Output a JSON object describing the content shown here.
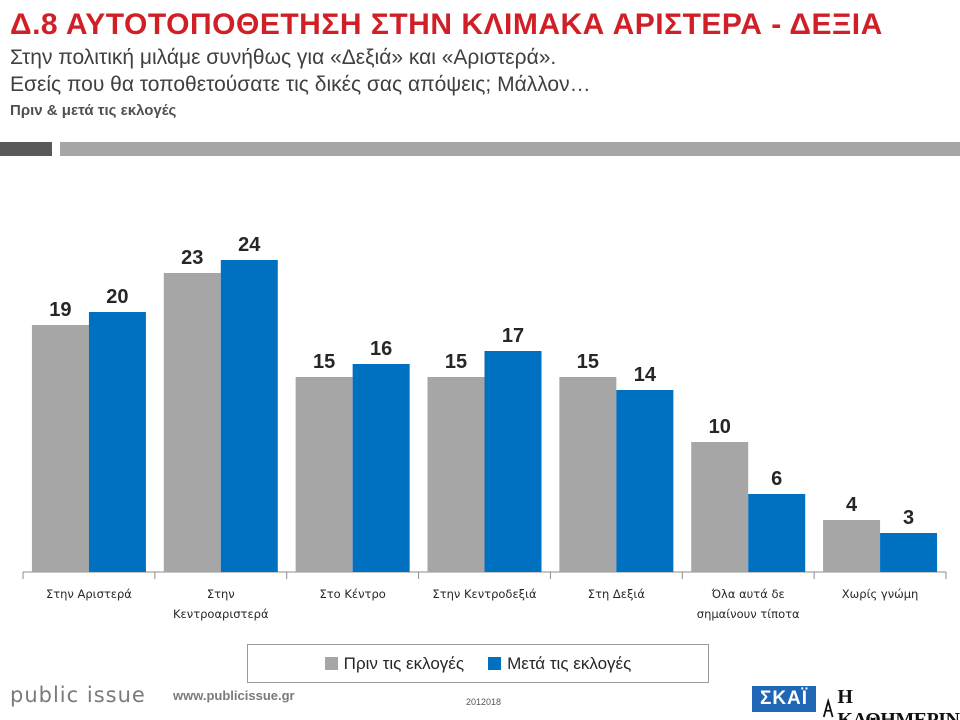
{
  "header": {
    "code": "Δ.8",
    "title": "ΑΥΤΟΤΟΠΟΘΕΤΗΣΗ ΣΤΗΝ ΚΛΙΜΑΚΑ ΑΡΙΣΤΕΡΑ - ΔΕΞΙΑ",
    "subtitle_line1": "Στην πολιτική μιλάμε συνήθως για «Δεξιά» και «Αριστερά».",
    "subtitle_line2": "Εσείς που θα τοποθετούσατε τις δικές σας απόψεις; Μάλλον…",
    "note": "Πριν & μετά τις εκλογές"
  },
  "colors": {
    "before": "#a6a6a6",
    "after": "#0070c0",
    "title": "#d01f26"
  },
  "chart_data": {
    "type": "bar",
    "title": "",
    "xlabel": "",
    "ylabel": "",
    "ylim": [
      0,
      25
    ],
    "grid": false,
    "legend_position": "bottom",
    "categories": [
      [
        "Στην Αριστερά"
      ],
      [
        "Στην",
        "Κεντροαριστερά"
      ],
      [
        "Στο Κέντρο"
      ],
      [
        "Στην Κεντροδεξιά"
      ],
      [
        "Στη Δεξιά"
      ],
      [
        "Όλα αυτά δε",
        "σημαίνουν τίποτα"
      ],
      [
        "Χωρίς γνώμη"
      ]
    ],
    "series": [
      {
        "name": "Πριν τις εκλογές",
        "values": [
          19,
          23,
          15,
          15,
          15,
          10,
          4
        ]
      },
      {
        "name": "Μετά τις εκλογές",
        "values": [
          20,
          24,
          16,
          17,
          14,
          6,
          3
        ]
      }
    ]
  },
  "footer": {
    "logo_text": "public issue",
    "url": "www.publicissue.gr",
    "code": "2012018",
    "skai_text": "ΣΚΑΪ",
    "kathimerini_text": "Η ΚΑΘΗΜΕΡΙΝΗ"
  }
}
